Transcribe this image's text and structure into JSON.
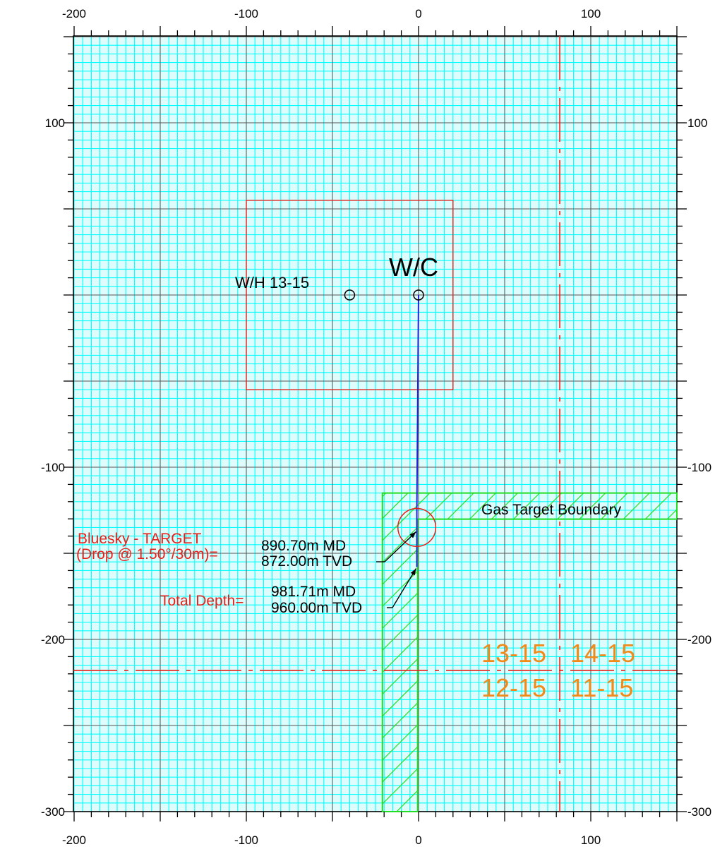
{
  "plot": {
    "x_range": [
      -200,
      150
    ],
    "y_range": [
      -300,
      150
    ],
    "major_step": 50,
    "minor_step": 10,
    "fine_step": 5,
    "x_tick_labels": [
      {
        "value": -200,
        "text": "-200"
      },
      {
        "value": -100,
        "text": "-100"
      },
      {
        "value": 0,
        "text": "0"
      },
      {
        "value": 100,
        "text": "100"
      }
    ],
    "y_tick_labels": [
      {
        "value": 100,
        "text": "100"
      },
      {
        "value": -100,
        "text": "-100"
      },
      {
        "value": -200,
        "text": "-200"
      },
      {
        "value": -300,
        "text": "-300"
      }
    ],
    "colors": {
      "background": "#00ffff",
      "fine_grid": "#00e0e0",
      "fine_grid_bg": "#dffcfc",
      "major_grid": "#555555",
      "target_hatch": "#22dd22",
      "trajectory": "#2222dd",
      "boundary": "#e8201a",
      "label_red": "#e8201a",
      "label_orange": "#f28a1a"
    }
  },
  "lease_box": {
    "x1": -100,
    "y1": 55,
    "x2": 20,
    "y2": -55
  },
  "section_lines": {
    "vertical_x": 82,
    "horizontal_y": -218
  },
  "gas_target": {
    "label": "Gas Target Boundary",
    "inner_x": -21,
    "top_y": -115,
    "bottom_y": -300,
    "right_x": 150
  },
  "wellhead_13_15": {
    "label": "W/H 13-15",
    "x": -40,
    "y": 0
  },
  "wc": {
    "label": "W/C",
    "x": 0,
    "y": 0
  },
  "trajectory_points": [
    [
      0,
      0
    ],
    [
      -1,
      -125
    ],
    [
      -1,
      -158
    ]
  ],
  "target": {
    "name_line1": "Bluesky - TARGET",
    "name_line2": "(Drop @ 1.50°/30m)=",
    "md": "890.70m MD",
    "tvd": "872.00m TVD",
    "x": -1,
    "y": -135,
    "radius": 11
  },
  "total_depth": {
    "name": "Total Depth=",
    "md": "981.71m MD",
    "tvd": "960.00m TVD",
    "x": -1,
    "y": -158
  },
  "sections": {
    "nw": "13-15",
    "ne": "14-15",
    "sw": "12-15",
    "se": "11-15"
  }
}
